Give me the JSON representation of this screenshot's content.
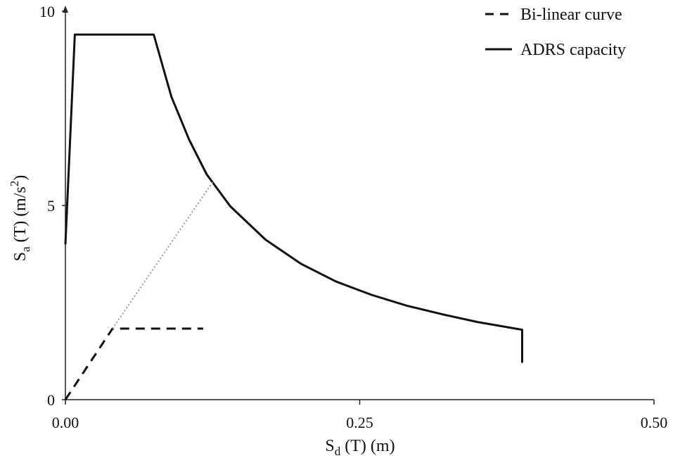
{
  "chart_data": {
    "type": "line",
    "xlabel": {
      "main": "S",
      "sub": "d",
      "rest": " (T) (m)"
    },
    "ylabel": {
      "main": "S",
      "sub": "a",
      "rest": " (T) (m/s",
      "sup": "2",
      "close": ")"
    },
    "xlim": [
      0,
      0.5
    ],
    "ylim": [
      0,
      10
    ],
    "x_ticks": [
      0,
      0.25,
      0.5
    ],
    "x_tick_labels": [
      "0.00",
      "0.25",
      "0.50"
    ],
    "y_ticks": [
      0,
      5,
      10
    ],
    "y_tick_labels": [
      "0",
      "5",
      "10"
    ],
    "grid": false,
    "legend_position": "top-right",
    "series": [
      {
        "name": "Bi-linear curve",
        "style": "dashed",
        "color": "#111111",
        "x": [
          0,
          0.04,
          0.117
        ],
        "y": [
          0,
          1.83,
          1.83
        ]
      },
      {
        "name": "ADRS capacity",
        "style": "solid",
        "color": "#111111",
        "x": [
          0.0,
          0.008,
          0.075,
          0.09,
          0.105,
          0.12,
          0.14,
          0.17,
          0.2,
          0.23,
          0.26,
          0.29,
          0.32,
          0.35,
          0.388,
          0.388
        ],
        "y": [
          4.0,
          9.4,
          9.4,
          7.8,
          6.7,
          5.8,
          4.98,
          4.12,
          3.5,
          3.04,
          2.7,
          2.42,
          2.2,
          2.0,
          1.8,
          0.95
        ]
      },
      {
        "style": "dotted",
        "color": "#999999",
        "x": [
          0.04,
          0.125
        ],
        "y": [
          1.83,
          5.6
        ]
      }
    ]
  }
}
